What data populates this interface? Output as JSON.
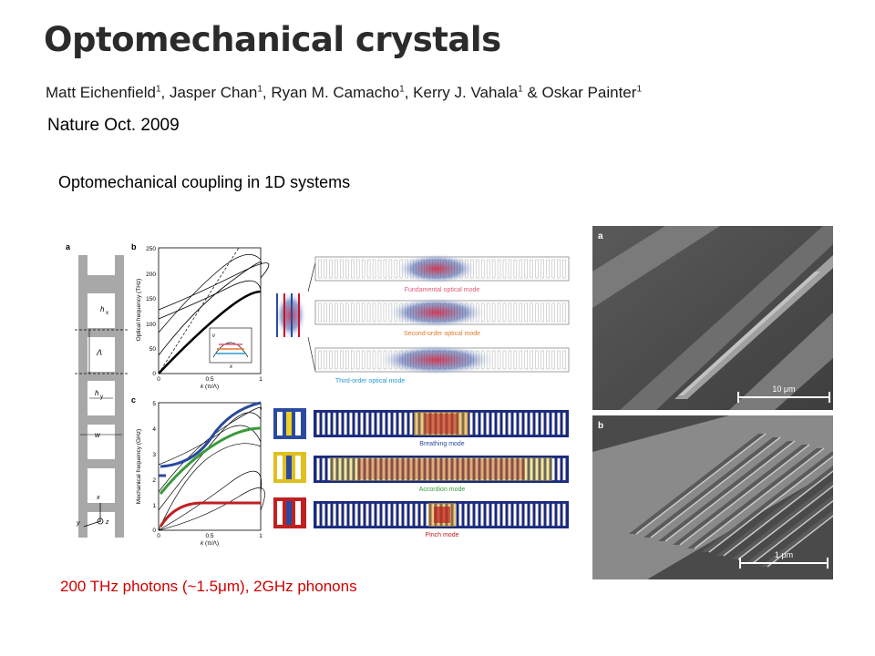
{
  "title": "Optomechanical crystals",
  "authors": [
    {
      "name": "Matt Eichenfield",
      "aff": "1",
      "sep": ", "
    },
    {
      "name": "Jasper Chan",
      "aff": "1",
      "sep": ", "
    },
    {
      "name": "Ryan M. Camacho",
      "aff": "1",
      "sep": ", "
    },
    {
      "name": "Kerry J. Vahala",
      "aff": "1",
      "sep": " & "
    },
    {
      "name": "Oskar Painter",
      "aff": "1",
      "sep": ""
    }
  ],
  "journal": "Nature Oct. 2009",
  "subtitle": "Optomechanical coupling in 1D systems",
  "footnote": "200 THz photons (~1.5μm), 2GHz phonons",
  "figure": {
    "panel_a": "a",
    "panel_b": "b",
    "panel_c": "c",
    "unit_cell_labels": {
      "hx": "h",
      "hx_sub": "x",
      "lambda": "Λ",
      "hy": "h",
      "hy_sub": "y",
      "w": "w",
      "axis_x": "x",
      "axis_y": "y",
      "axis_z": "z"
    },
    "optical_chart": {
      "ylabel": "Optical frequency (THz)",
      "xlabel": "k",
      "xlabel_tail": " (π/Λ)",
      "yticks": [
        "250",
        "200",
        "150",
        "100",
        "50",
        "0"
      ],
      "xticks": [
        "0",
        "0.5",
        "1"
      ],
      "inset_ylabel": "ν",
      "inset_xlabel": "x"
    },
    "mechanical_chart": {
      "ylabel": "Mechanical frequency (GHz)",
      "xlabel": "k",
      "xlabel_tail": " (π/Λ)",
      "yticks": [
        "5",
        "4",
        "3",
        "2",
        "1",
        "0"
      ],
      "xticks": [
        "0",
        "0.5",
        "1"
      ]
    },
    "optical_modes": [
      "Fundamental optical mode",
      "Second-order optical mode",
      "Third-order optical mode"
    ],
    "mechanical_modes": [
      "Breathing mode",
      "Accordion mode",
      "Pinch mode"
    ]
  },
  "sem": {
    "panel_a": "a",
    "panel_b": "b",
    "scale_a": "10 μm",
    "scale_b": "1 μm"
  },
  "colors": {
    "optical_mode_1": "#e05a7a",
    "optical_mode_2": "#e07a2a",
    "optical_mode_3": "#2a9ad0",
    "breathing": "#2a4aa0",
    "accordion": "#3a9a3a",
    "pinch": "#c02020"
  }
}
